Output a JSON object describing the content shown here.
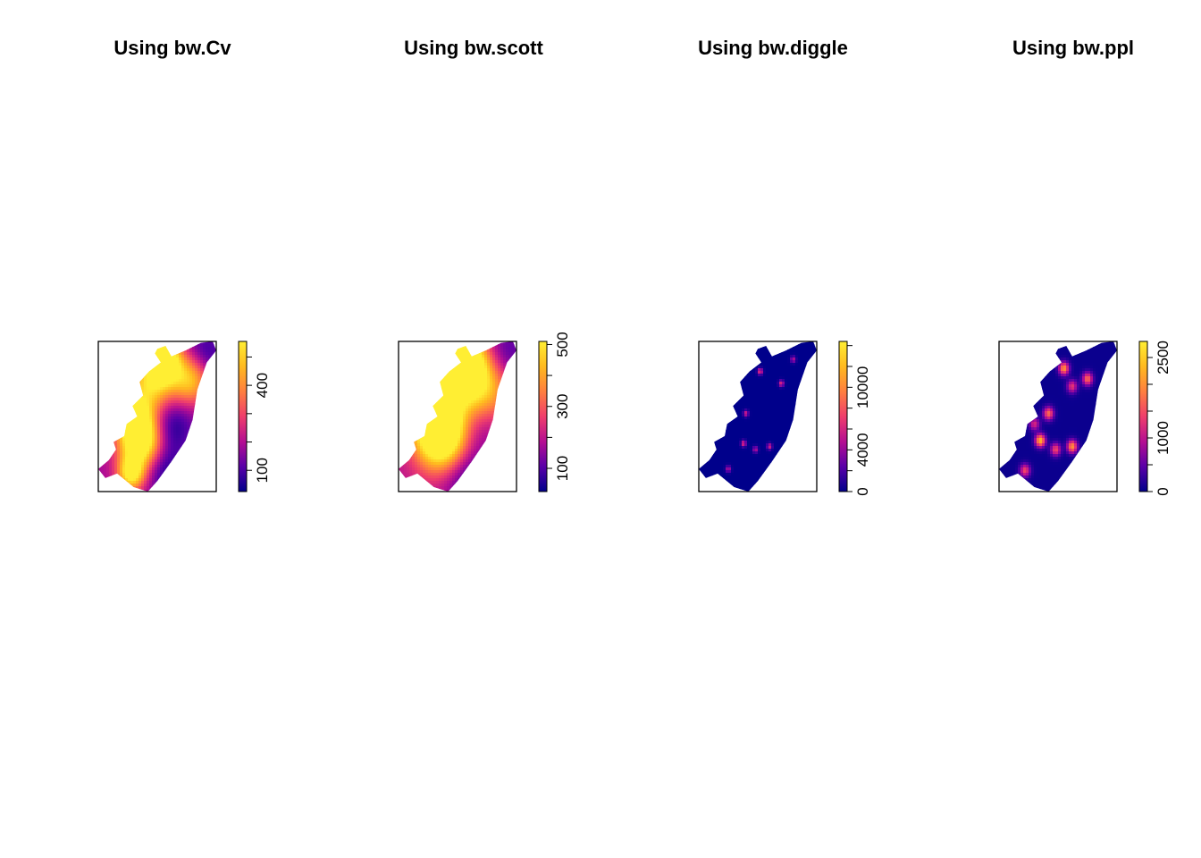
{
  "colors": {
    "ramp": [
      "#00008b",
      "#5a00a8",
      "#b50f92",
      "#ef3e6c",
      "#ff7f3f",
      "#ffba1f",
      "#ffee33"
    ],
    "frame": "#000000",
    "background": "#ffffff"
  },
  "chart_data": [
    {
      "type": "heatmap",
      "title": "Using bw.Cv",
      "legend": {
        "min": 25,
        "max": 555,
        "ticks": [
          100,
          200,
          300,
          400,
          500
        ],
        "tick_labels": [
          "100",
          "",
          "",
          "400",
          ""
        ]
      },
      "field": {
        "base": 0.3,
        "hotspots": [
          [
            0.36,
            0.66,
            1.0,
            0.13
          ],
          [
            0.55,
            0.12,
            0.95,
            0.1
          ],
          [
            0.28,
            0.88,
            0.7,
            0.08
          ],
          [
            0.45,
            0.3,
            0.6,
            0.14
          ],
          [
            0.78,
            0.25,
            0.6,
            0.12
          ],
          [
            0.3,
            0.5,
            0.55,
            0.1
          ]
        ],
        "coldspots": [
          [
            0.6,
            0.55,
            0.3,
            0.14
          ],
          [
            0.55,
            0.85,
            0.25,
            0.12
          ],
          [
            0.9,
            0.1,
            0.25,
            0.12
          ]
        ]
      }
    },
    {
      "type": "heatmap",
      "title": "Using bw.scott",
      "legend": {
        "min": 25,
        "max": 510,
        "ticks": [
          100,
          200,
          300,
          400,
          500
        ],
        "tick_labels": [
          "100",
          "",
          "300",
          "",
          "500"
        ]
      },
      "field": {
        "base": 0.34,
        "hotspots": [
          [
            0.38,
            0.65,
            0.95,
            0.16
          ],
          [
            0.55,
            0.13,
            0.95,
            0.13
          ],
          [
            0.3,
            0.5,
            0.55,
            0.14
          ],
          [
            0.5,
            0.35,
            0.45,
            0.18
          ],
          [
            0.75,
            0.3,
            0.45,
            0.16
          ]
        ],
        "coldspots": [
          [
            0.6,
            0.55,
            0.28,
            0.16
          ],
          [
            0.55,
            0.88,
            0.28,
            0.14
          ],
          [
            0.9,
            0.1,
            0.25,
            0.14
          ]
        ]
      }
    },
    {
      "type": "heatmap",
      "title": "Using bw.diggle",
      "legend": {
        "min": 0,
        "max": 14400,
        "ticks": [
          0,
          2000,
          4000,
          6000,
          8000,
          10000,
          12000,
          14000
        ],
        "tick_labels": [
          "0",
          "",
          "4000",
          "",
          "",
          "10000",
          "",
          ""
        ]
      },
      "field": {
        "base": 0.0,
        "hotspots": [
          [
            0.52,
            0.2,
            0.5,
            0.015
          ],
          [
            0.7,
            0.28,
            0.45,
            0.015
          ],
          [
            0.4,
            0.48,
            0.4,
            0.015
          ],
          [
            0.38,
            0.68,
            0.45,
            0.015
          ],
          [
            0.6,
            0.7,
            0.4,
            0.015
          ],
          [
            0.25,
            0.85,
            0.35,
            0.015
          ],
          [
            0.8,
            0.12,
            0.35,
            0.015
          ],
          [
            0.48,
            0.72,
            0.35,
            0.015
          ]
        ],
        "coldspots": []
      }
    },
    {
      "type": "heatmap",
      "title": "Using bw.ppl",
      "legend": {
        "min": 0,
        "max": 2800,
        "ticks": [
          0,
          500,
          1000,
          1500,
          2000,
          2500
        ],
        "tick_labels": [
          "0",
          "",
          "1000",
          "",
          "",
          "2500"
        ]
      },
      "field": {
        "base": 0.02,
        "hotspots": [
          [
            0.55,
            0.18,
            0.7,
            0.03
          ],
          [
            0.75,
            0.25,
            0.6,
            0.03
          ],
          [
            0.42,
            0.48,
            0.6,
            0.03
          ],
          [
            0.35,
            0.66,
            0.8,
            0.03
          ],
          [
            0.62,
            0.7,
            0.7,
            0.03
          ],
          [
            0.22,
            0.86,
            0.5,
            0.03
          ],
          [
            0.48,
            0.72,
            0.5,
            0.03
          ],
          [
            0.62,
            0.3,
            0.45,
            0.03
          ],
          [
            0.3,
            0.55,
            0.4,
            0.03
          ]
        ],
        "coldspots": []
      }
    }
  ]
}
